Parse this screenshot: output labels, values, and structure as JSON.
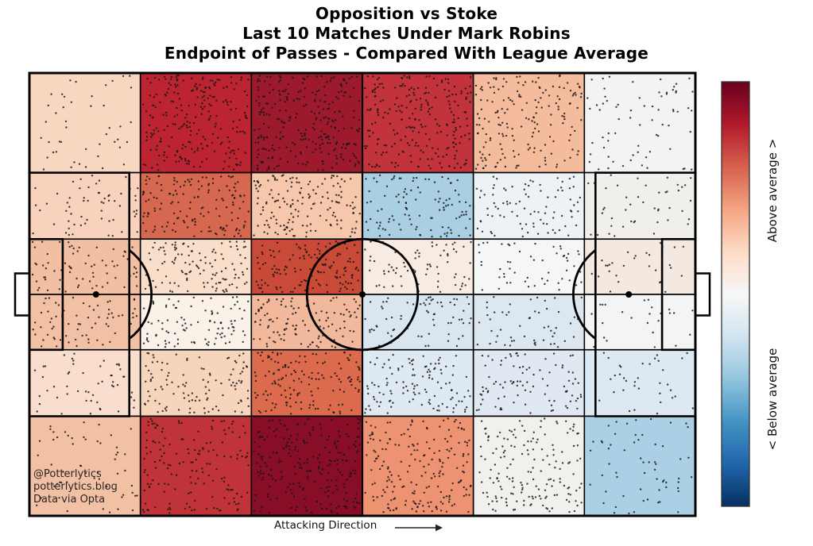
{
  "title": {
    "lines": [
      "Opposition vs Stoke",
      "Last 10 Matches Under Mark Robins",
      "Endpoint of Passes - Compared With League Average"
    ]
  },
  "attribution": {
    "lines": [
      "@Potterlytics",
      "potterlytics.blog",
      "Data via Opta"
    ]
  },
  "footer": {
    "attacking_direction": "Attacking Direction"
  },
  "colorbar": {
    "label_above": "Above average >",
    "label_below": "< Below average",
    "gradient_top_to_bottom": [
      "#67001f",
      "#b2182b",
      "#d6604d",
      "#f4a582",
      "#fddbc7",
      "#f7f7f7",
      "#d1e5f0",
      "#92c5de",
      "#4393c3",
      "#2166ac",
      "#053061"
    ]
  },
  "chart_data": {
    "type": "heatmap",
    "title": "Opposition vs Stoke - Last 10 Matches Under Mark Robins - Endpoint of Passes - Compared With League Average",
    "description": "Football pitch divided into a 6x6 zonal grid; zone fill shows opposition pass-endpoint volume vs league average (red = above average, blue = below average); black dots are individual pass endpoints.",
    "attacking_direction": "left-to-right",
    "grid": {
      "rows": 6,
      "cols": 6,
      "col_boundaries_pitch_x": [
        0,
        20,
        40,
        60,
        80,
        100,
        120
      ],
      "row_boundaries_pitch_y": [
        0,
        18,
        30,
        40,
        50,
        62,
        80
      ]
    },
    "cell_colors": [
      [
        "#f8d7c0",
        "#bd2432",
        "#9d1a2d",
        "#c2333c",
        "#f5bb9d",
        "#f4f3f3"
      ],
      [
        "#f8d2bc",
        "#d66850",
        "#f6c7ab",
        "#aacfe3",
        "#edf2f5",
        "#f1efec"
      ],
      [
        "#f2bfa3",
        "#f9dfca",
        "#ca4a38",
        "#f7ebe2",
        "#f5f6f6",
        "#f3e9e1"
      ],
      [
        "#f2c0a4",
        "#faf1e9",
        "#f2b89c",
        "#d9e5ef",
        "#dde7f0",
        "#f3f4f6"
      ],
      [
        "#f9decd",
        "#f7d5bd",
        "#dc6b4e",
        "#dfe9f2",
        "#e0e9f1",
        "#dde9f2"
      ],
      [
        "#f2c0a2",
        "#c03439",
        "#870e26",
        "#ee9371",
        "#f2f0ec",
        "#abd0e5"
      ]
    ],
    "cell_dot_counts": [
      [
        45,
        240,
        280,
        240,
        180,
        70
      ],
      [
        60,
        150,
        160,
        110,
        90,
        45
      ],
      [
        75,
        120,
        140,
        70,
        55,
        30
      ],
      [
        70,
        100,
        120,
        70,
        55,
        25
      ],
      [
        55,
        110,
        150,
        120,
        95,
        35
      ],
      [
        55,
        160,
        230,
        200,
        170,
        60
      ]
    ],
    "scale": {
      "high_label": "Above average >",
      "low_label": "< Below average",
      "colormap": "RdBu reversed (dark red = most above average, dark blue = most below average)"
    }
  }
}
